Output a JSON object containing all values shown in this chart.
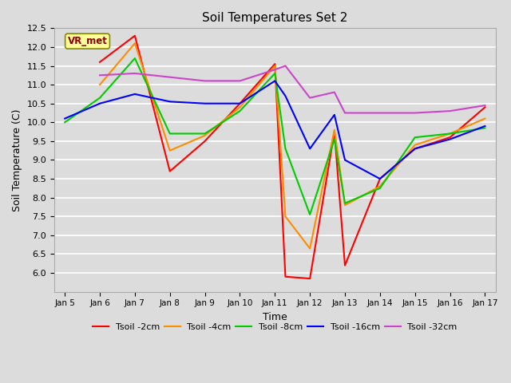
{
  "title": "Soil Temperatures Set 2",
  "xlabel": "Time",
  "ylabel": "Soil Temperature (C)",
  "ylim": [
    5.5,
    12.5
  ],
  "yticks": [
    6.0,
    6.5,
    7.0,
    7.5,
    8.0,
    8.5,
    9.0,
    9.5,
    10.0,
    10.5,
    11.0,
    11.5,
    12.0,
    12.5
  ],
  "x_labels": [
    "Jan 5",
    "Jan 6",
    "Jan 7",
    "Jan 8",
    "Jan 9",
    "Jan 10",
    "Jan 11",
    "Jan 12",
    "Jan 13",
    "Jan 14",
    "Jan 15",
    "Jan 16",
    "Jan 17"
  ],
  "background_color": "#dcdcdc",
  "plot_bg_color": "#dcdcdc",
  "annotation_text": "VR_met",
  "annotation_color": "#8B0000",
  "annotation_bg": "#ffff99",
  "series": [
    {
      "label": "Tsoil -2cm",
      "color": "#ff0000",
      "data": [
        null,
        11.6,
        12.3,
        8.7,
        9.5,
        10.5,
        11.55,
        5.9,
        5.85,
        9.75,
        6.2,
        8.5,
        9.3,
        9.6,
        10.4
      ]
    },
    {
      "label": "Tsoil -4cm",
      "color": "#ff8c00",
      "data": [
        null,
        11.0,
        12.1,
        9.25,
        9.65,
        10.4,
        11.5,
        7.5,
        6.65,
        9.8,
        7.8,
        8.3,
        9.4,
        9.7,
        10.1
      ]
    },
    {
      "label": "Tsoil -8cm",
      "color": "#00cc00",
      "data": [
        10.0,
        10.65,
        11.7,
        9.7,
        9.7,
        10.3,
        11.3,
        9.3,
        7.55,
        9.55,
        7.85,
        8.25,
        9.6,
        9.7,
        9.85
      ]
    },
    {
      "label": "Tsoil -16cm",
      "color": "#0000ff",
      "data": [
        10.1,
        10.5,
        10.75,
        10.55,
        10.5,
        10.5,
        11.1,
        10.7,
        9.3,
        10.2,
        9.0,
        8.5,
        9.3,
        9.55,
        9.9
      ]
    },
    {
      "label": "Tsoil -32cm",
      "color": "#cc44cc",
      "data": [
        null,
        11.25,
        11.3,
        11.2,
        11.1,
        11.1,
        11.4,
        11.5,
        10.65,
        10.8,
        10.25,
        10.25,
        10.25,
        10.3,
        10.45
      ]
    }
  ]
}
